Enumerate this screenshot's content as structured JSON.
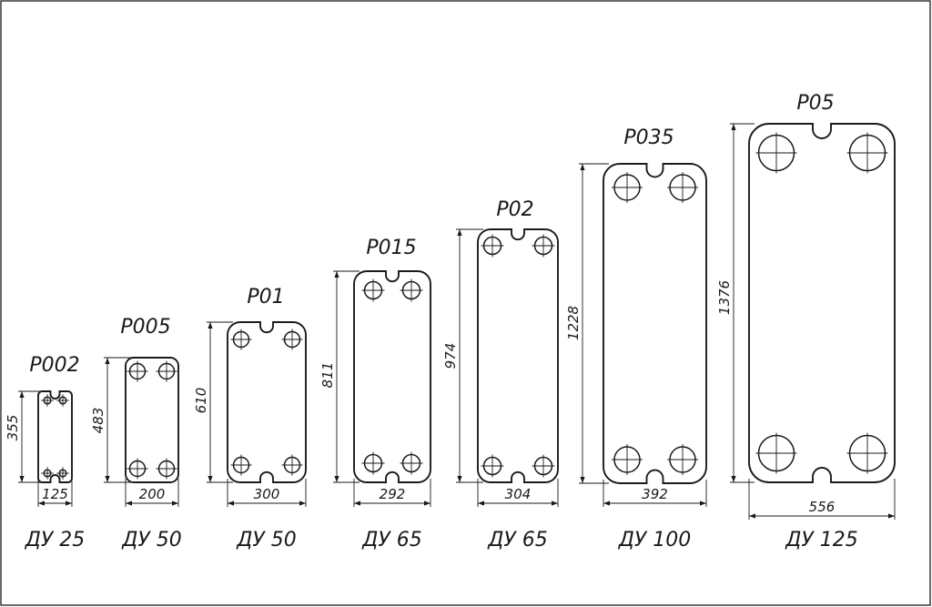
{
  "plates": [
    {
      "model": "P002",
      "height": "355",
      "width": "125",
      "dn": "ДУ 25"
    },
    {
      "model": "P005",
      "height": "483",
      "width": "200",
      "dn": "ДУ 50"
    },
    {
      "model": "P01",
      "height": "610",
      "width": "300",
      "dn": "ДУ 50"
    },
    {
      "model": "P015",
      "height": "811",
      "width": "292",
      "dn": "ДУ 65"
    },
    {
      "model": "P02",
      "height": "974",
      "width": "304",
      "dn": "ДУ 65"
    },
    {
      "model": "P035",
      "height": "1228",
      "width": "392",
      "dn": "ДУ 100"
    },
    {
      "model": "P05",
      "height": "1376",
      "width": "556",
      "dn": "ДУ 125"
    }
  ]
}
